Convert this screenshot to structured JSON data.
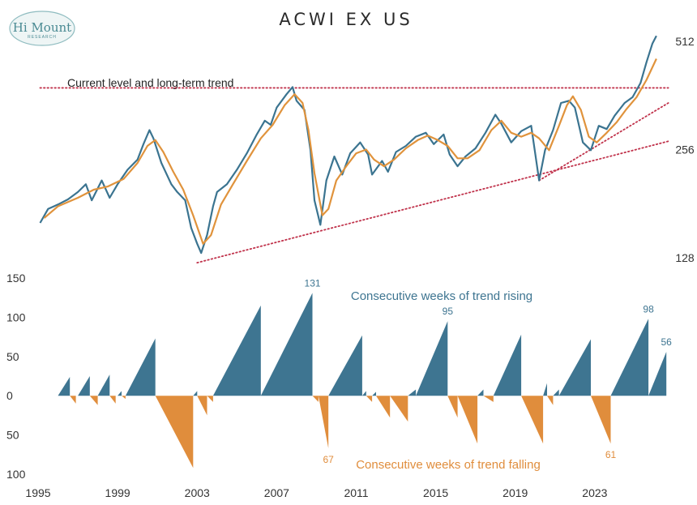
{
  "colors": {
    "price": "#3b7490",
    "ma": "#e0933c",
    "trendline": "#c0324b",
    "rising": "#3e7591",
    "falling": "#e08d3c",
    "text": "#333333",
    "logo_fill": "#eef5f5",
    "logo_stroke": "#8fbcc0",
    "logo_text": "#4a8a93"
  },
  "logo": {
    "main": "Hi Mount",
    "sub": "RESEARCH"
  },
  "chart_data": {
    "type": "line",
    "title": "ACWI EX US",
    "annotation": "Current level and long-term trend",
    "top_panel": {
      "scale": "log2",
      "ylim": [
        118,
        560
      ],
      "y_ticks": [
        128,
        256,
        512
      ],
      "series": [
        {
          "kind": "price",
          "points": [
            [
              1995.1,
              160
            ],
            [
              1995.5,
              175
            ],
            [
              1996.0,
              180
            ],
            [
              1996.5,
              186
            ],
            [
              1997.0,
              195
            ],
            [
              1997.4,
              205
            ],
            [
              1997.7,
              185
            ],
            [
              1998.2,
              210
            ],
            [
              1998.6,
              188
            ],
            [
              1999.0,
              205
            ],
            [
              1999.5,
              225
            ],
            [
              2000.0,
              240
            ],
            [
              2000.3,
              265
            ],
            [
              2000.6,
              290
            ],
            [
              2000.8,
              275
            ],
            [
              2001.2,
              235
            ],
            [
              2001.7,
              205
            ],
            [
              2002.0,
              195
            ],
            [
              2002.4,
              185
            ],
            [
              2002.7,
              155
            ],
            [
              2003.0,
              140
            ],
            [
              2003.2,
              132
            ],
            [
              2003.5,
              148
            ],
            [
              2003.8,
              178
            ],
            [
              2004.0,
              195
            ],
            [
              2004.5,
              205
            ],
            [
              2005.0,
              225
            ],
            [
              2005.5,
              250
            ],
            [
              2006.0,
              282
            ],
            [
              2006.4,
              308
            ],
            [
              2006.7,
              300
            ],
            [
              2007.0,
              335
            ],
            [
              2007.5,
              365
            ],
            [
              2007.8,
              382
            ],
            [
              2008.0,
              350
            ],
            [
              2008.4,
              330
            ],
            [
              2008.7,
              255
            ],
            [
              2008.9,
              185
            ],
            [
              2009.2,
              158
            ],
            [
              2009.5,
              210
            ],
            [
              2009.9,
              245
            ],
            [
              2010.3,
              218
            ],
            [
              2010.7,
              250
            ],
            [
              2011.2,
              268
            ],
            [
              2011.6,
              248
            ],
            [
              2011.8,
              218
            ],
            [
              2012.3,
              238
            ],
            [
              2012.6,
              222
            ],
            [
              2013.0,
              252
            ],
            [
              2013.5,
              262
            ],
            [
              2014.0,
              278
            ],
            [
              2014.5,
              285
            ],
            [
              2014.9,
              265
            ],
            [
              2015.4,
              282
            ],
            [
              2015.7,
              248
            ],
            [
              2016.1,
              230
            ],
            [
              2016.5,
              245
            ],
            [
              2017.0,
              258
            ],
            [
              2017.5,
              285
            ],
            [
              2018.0,
              320
            ],
            [
              2018.3,
              302
            ],
            [
              2018.8,
              268
            ],
            [
              2019.3,
              288
            ],
            [
              2019.8,
              298
            ],
            [
              2020.2,
              210
            ],
            [
              2020.5,
              255
            ],
            [
              2020.9,
              290
            ],
            [
              2021.3,
              345
            ],
            [
              2021.7,
              350
            ],
            [
              2022.0,
              335
            ],
            [
              2022.4,
              268
            ],
            [
              2022.8,
              255
            ],
            [
              2023.2,
              298
            ],
            [
              2023.6,
              292
            ],
            [
              2024.0,
              318
            ],
            [
              2024.5,
              345
            ],
            [
              2024.9,
              358
            ],
            [
              2025.3,
              392
            ],
            [
              2025.6,
              448
            ],
            [
              2025.9,
              505
            ],
            [
              2026.1,
              530
            ]
          ]
        },
        {
          "kind": "moving_average",
          "points": [
            [
              1995.3,
              165
            ],
            [
              1996.0,
              178
            ],
            [
              1997.0,
              188
            ],
            [
              1997.8,
              198
            ],
            [
              1998.5,
              202
            ],
            [
              1999.3,
              212
            ],
            [
              2000.0,
              235
            ],
            [
              2000.5,
              262
            ],
            [
              2000.9,
              272
            ],
            [
              2001.3,
              252
            ],
            [
              2001.8,
              222
            ],
            [
              2002.3,
              198
            ],
            [
              2002.8,
              168
            ],
            [
              2003.3,
              140
            ],
            [
              2003.7,
              148
            ],
            [
              2004.2,
              180
            ],
            [
              2004.8,
              205
            ],
            [
              2005.5,
              238
            ],
            [
              2006.2,
              275
            ],
            [
              2006.8,
              300
            ],
            [
              2007.4,
              340
            ],
            [
              2007.9,
              365
            ],
            [
              2008.3,
              345
            ],
            [
              2008.6,
              290
            ],
            [
              2008.9,
              220
            ],
            [
              2009.3,
              168
            ],
            [
              2009.6,
              175
            ],
            [
              2010.0,
              210
            ],
            [
              2010.5,
              230
            ],
            [
              2011.0,
              250
            ],
            [
              2011.5,
              256
            ],
            [
              2011.9,
              240
            ],
            [
              2012.4,
              230
            ],
            [
              2012.9,
              240
            ],
            [
              2013.5,
              258
            ],
            [
              2014.1,
              272
            ],
            [
              2014.6,
              280
            ],
            [
              2015.1,
              272
            ],
            [
              2015.6,
              262
            ],
            [
              2016.1,
              242
            ],
            [
              2016.6,
              242
            ],
            [
              2017.2,
              255
            ],
            [
              2017.8,
              290
            ],
            [
              2018.3,
              308
            ],
            [
              2018.8,
              285
            ],
            [
              2019.3,
              278
            ],
            [
              2019.8,
              285
            ],
            [
              2020.2,
              275
            ],
            [
              2020.7,
              255
            ],
            [
              2021.2,
              298
            ],
            [
              2021.6,
              340
            ],
            [
              2021.9,
              360
            ],
            [
              2022.3,
              330
            ],
            [
              2022.7,
              278
            ],
            [
              2023.1,
              268
            ],
            [
              2023.6,
              285
            ],
            [
              2024.1,
              305
            ],
            [
              2024.6,
              332
            ],
            [
              2025.1,
              358
            ],
            [
              2025.6,
              400
            ],
            [
              2026.1,
              458
            ]
          ]
        }
      ],
      "trendlines": [
        {
          "kind": "horizontal",
          "y": 380,
          "x": [
            1995.1,
            2026.7
          ]
        },
        {
          "kind": "rising",
          "from": [
            2003.0,
            124
          ],
          "to": [
            2026.7,
            270
          ]
        },
        {
          "kind": "rising",
          "from": [
            2020.2,
            210
          ],
          "to": [
            2026.7,
            345
          ]
        }
      ]
    },
    "bottom_panel": {
      "ylim": [
        -100,
        150
      ],
      "y_tick_labels": [
        {
          "value": 150,
          "label": "150"
        },
        {
          "value": 100,
          "label": "100"
        },
        {
          "value": 50,
          "label": "50"
        },
        {
          "value": 0,
          "label": "0"
        },
        {
          "value": -50,
          "label": "50"
        },
        {
          "value": -100,
          "label": "100"
        }
      ],
      "series": [
        {
          "name": "Consecutive weeks of trend rising",
          "sign": 1
        },
        {
          "name": "Consecutive weeks of trend falling",
          "sign": -1
        }
      ],
      "runs": [
        [
          1996.0,
          1996.6,
          24
        ],
        [
          1996.6,
          1996.9,
          -10
        ],
        [
          1997.0,
          1997.6,
          25
        ],
        [
          1997.6,
          1998.0,
          -12
        ],
        [
          1998.0,
          1998.6,
          27
        ],
        [
          1998.6,
          1998.9,
          -10
        ],
        [
          1999.0,
          1999.2,
          6
        ],
        [
          1999.2,
          1999.4,
          -4
        ],
        [
          1999.4,
          2000.9,
          73
        ],
        [
          2000.9,
          2002.8,
          -92
        ],
        [
          2002.8,
          2003.0,
          6
        ],
        [
          2003.0,
          2003.5,
          -25
        ],
        [
          2003.5,
          2003.8,
          -8
        ],
        [
          2003.8,
          2006.2,
          115
        ],
        [
          2006.2,
          2008.8,
          131
        ],
        [
          2008.8,
          2009.1,
          -8
        ],
        [
          2009.1,
          2009.6,
          -67
        ],
        [
          2009.6,
          2011.3,
          77
        ],
        [
          2011.3,
          2011.5,
          6
        ],
        [
          2011.5,
          2011.8,
          -8
        ],
        [
          2011.8,
          2012.0,
          5
        ],
        [
          2012.0,
          2012.7,
          -28
        ],
        [
          2012.7,
          2013.6,
          -33
        ],
        [
          2013.6,
          2014.0,
          8
        ],
        [
          2014.0,
          2015.6,
          95
        ],
        [
          2015.6,
          2016.1,
          -28
        ],
        [
          2016.1,
          2017.1,
          -61
        ],
        [
          2017.1,
          2017.4,
          8
        ],
        [
          2017.4,
          2017.9,
          -8
        ],
        [
          2017.9,
          2019.3,
          78
        ],
        [
          2019.3,
          2020.4,
          -61
        ],
        [
          2020.4,
          2020.6,
          16
        ],
        [
          2020.6,
          2020.9,
          -12
        ],
        [
          2020.9,
          2021.2,
          8
        ],
        [
          2021.2,
          2022.8,
          72
        ],
        [
          2022.8,
          2023.8,
          -61
        ],
        [
          2023.8,
          2025.7,
          98
        ],
        [
          2025.7,
          2026.6,
          56
        ]
      ],
      "value_labels": [
        {
          "text": "131",
          "x": 2008.8,
          "y": 131,
          "sign": 1
        },
        {
          "text": "95",
          "x": 2015.6,
          "y": 95,
          "sign": 1
        },
        {
          "text": "98",
          "x": 2025.7,
          "y": 98,
          "sign": 1
        },
        {
          "text": "56",
          "x": 2026.6,
          "y": 56,
          "sign": 1
        },
        {
          "text": "67",
          "x": 2009.6,
          "y": -67,
          "sign": -1
        },
        {
          "text": "61",
          "x": 2023.8,
          "y": -61,
          "sign": -1
        }
      ]
    },
    "x_axis": {
      "range": [
        1995.0,
        2027.0
      ],
      "ticks": [
        1995,
        1999,
        2003,
        2007,
        2011,
        2015,
        2019,
        2023
      ]
    }
  }
}
